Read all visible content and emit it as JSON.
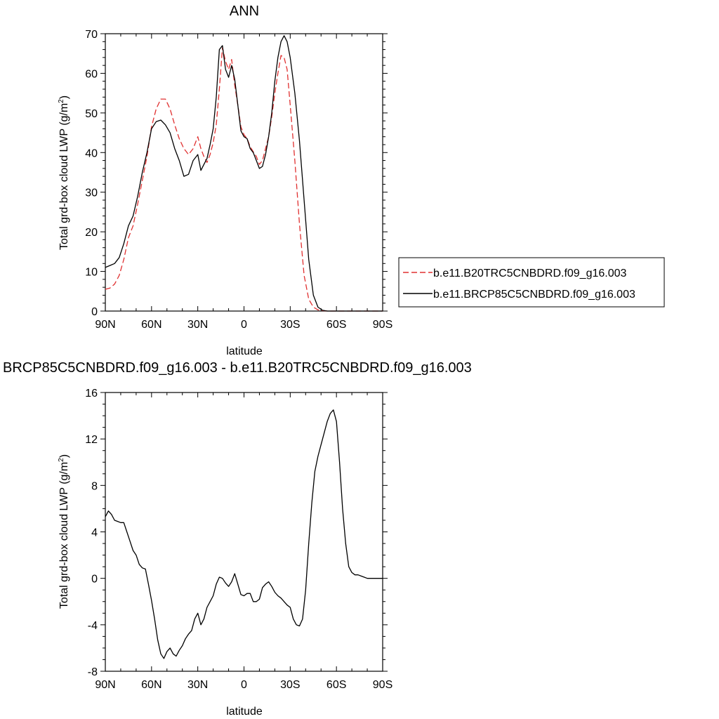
{
  "chart_data": [
    {
      "type": "line",
      "title": "ANN",
      "xlabel": "latitude",
      "ylabel_main": "Total grd-box cloud LWP (g/m",
      "ylabel_sup": "2",
      "ylabel_close": ")",
      "xlim": [
        90,
        -90
      ],
      "ylim": [
        0,
        70
      ],
      "xticks": [
        90,
        60,
        30,
        0,
        -30,
        -60,
        -90
      ],
      "xticklabels": [
        "90N",
        "60N",
        "30N",
        "0",
        "30S",
        "60S",
        "90S"
      ],
      "yticks": [
        0,
        10,
        20,
        30,
        40,
        50,
        60,
        70
      ],
      "yticklabels": [
        "0",
        "10",
        "20",
        "30",
        "40",
        "50",
        "60",
        "70"
      ],
      "legend_position": "right",
      "series": [
        {
          "name": "b.e11.B20TRC5CNBDRD.f09_g16.003",
          "color": "#e03030",
          "style": "dashed",
          "x": [
            90,
            87,
            84,
            81,
            78,
            75,
            72,
            69,
            66,
            63,
            60,
            57,
            54,
            51,
            48,
            45,
            42,
            39,
            36,
            33,
            30,
            28,
            26,
            24,
            22,
            20,
            18,
            16,
            14,
            12,
            10,
            8,
            6,
            4,
            2,
            0,
            -2,
            -4,
            -6,
            -8,
            -10,
            -12,
            -14,
            -16,
            -18,
            -20,
            -22,
            -24,
            -26,
            -28,
            -30,
            -33,
            -36,
            -39,
            -42,
            -45,
            -48,
            -51,
            -54,
            -57,
            -60,
            -63,
            -66,
            -69,
            -72,
            -75,
            -78,
            -81,
            -84,
            -87,
            -90
          ],
          "y": [
            5.5,
            5.8,
            6.8,
            9,
            13,
            18.5,
            21.5,
            27,
            33,
            39,
            46.5,
            51,
            53.5,
            53.5,
            51,
            47,
            43.5,
            41,
            39.5,
            41,
            44,
            41,
            39,
            37.5,
            39.5,
            42.5,
            47,
            56,
            66.5,
            63,
            61,
            63.5,
            57,
            52,
            46.5,
            44.5,
            43.5,
            41.5,
            40.2,
            39,
            37,
            38,
            41,
            44,
            49,
            55,
            60,
            64.5,
            64,
            61,
            52,
            38,
            22,
            9,
            3,
            1,
            0.3,
            0.1,
            0.02,
            0,
            0,
            0,
            0,
            0,
            0,
            0,
            0,
            0,
            0,
            0,
            0
          ]
        },
        {
          "name": "b.e11.BRCP85C5CNBDRD.f09_g16.003",
          "color": "#000000",
          "style": "solid",
          "x": [
            90,
            87,
            84,
            81,
            78,
            75,
            72,
            69,
            66,
            63,
            60,
            57,
            54,
            51,
            48,
            45,
            42,
            39,
            36,
            33,
            30,
            28,
            26,
            24,
            22,
            20,
            18,
            16,
            14,
            12,
            10,
            8,
            6,
            4,
            2,
            0,
            -2,
            -4,
            -6,
            -8,
            -10,
            -12,
            -14,
            -16,
            -18,
            -20,
            -22,
            -24,
            -26,
            -28,
            -30,
            -33,
            -36,
            -39,
            -42,
            -45,
            -48,
            -51,
            -54,
            -57,
            -60,
            -63,
            -66,
            -69,
            -72,
            -75,
            -78,
            -81,
            -84,
            -87,
            -90
          ],
          "y": [
            11,
            11.5,
            12,
            13.5,
            17,
            21.5,
            24,
            29,
            35,
            40,
            46,
            47.8,
            48.2,
            47,
            45,
            41,
            38,
            34,
            34.5,
            38,
            39.5,
            35.5,
            37,
            38.5,
            42,
            46,
            54,
            66,
            67,
            61,
            59,
            62,
            58.5,
            52,
            45.5,
            44,
            43.5,
            41,
            40,
            38,
            36,
            36.5,
            39.5,
            44,
            50,
            58,
            64,
            68,
            69.5,
            68,
            64,
            55,
            43,
            28,
            13,
            4,
            1,
            0.2,
            0,
            0,
            0,
            0,
            0,
            0,
            0,
            0,
            0,
            0,
            0,
            0,
            0
          ]
        }
      ]
    },
    {
      "type": "line",
      "title": "BRCP85C5CNBDRD.f09_g16.003 - b.e11.B20TRC5CNBDRD.f09_g16.003",
      "xlabel": "latitude",
      "ylabel_main": "Total grd-box cloud LWP (g/m",
      "ylabel_sup": "2",
      "ylabel_close": ")",
      "xlim": [
        90,
        -90
      ],
      "ylim": [
        -8,
        16
      ],
      "xticks": [
        90,
        60,
        30,
        0,
        -30,
        -60,
        -90
      ],
      "xticklabels": [
        "90N",
        "60N",
        "30N",
        "0",
        "30S",
        "60S",
        "90S"
      ],
      "yticks": [
        -8,
        -4,
        0,
        4,
        8,
        12,
        16
      ],
      "yticklabels": [
        "-8",
        "-4",
        "0",
        "4",
        "8",
        "12",
        "16"
      ],
      "series": [
        {
          "color": "#000000",
          "style": "solid",
          "x": [
            90,
            88,
            86,
            84,
            82,
            80,
            78,
            76,
            74,
            72,
            70,
            68,
            66,
            64,
            62,
            60,
            58,
            56,
            54,
            52,
            50,
            48,
            46,
            44,
            42,
            40,
            38,
            36,
            34,
            32,
            30,
            28,
            26,
            24,
            22,
            20,
            18,
            16,
            14,
            12,
            10,
            8,
            6,
            4,
            2,
            0,
            -2,
            -4,
            -6,
            -8,
            -10,
            -12,
            -14,
            -16,
            -18,
            -20,
            -22,
            -24,
            -26,
            -28,
            -30,
            -32,
            -34,
            -36,
            -38,
            -40,
            -42,
            -44,
            -46,
            -48,
            -50,
            -52,
            -54,
            -56,
            -58,
            -60,
            -62,
            -64,
            -66,
            -68,
            -70,
            -72,
            -74,
            -76,
            -78,
            -80,
            -82,
            -84,
            -86,
            -88,
            -90
          ],
          "y": [
            5.3,
            5.8,
            5.5,
            5,
            4.9,
            4.8,
            4.8,
            4,
            3.2,
            2.4,
            2,
            1.2,
            0.9,
            0.8,
            -0.5,
            -1.9,
            -3.5,
            -5.3,
            -6.5,
            -6.9,
            -6.3,
            -6,
            -6.5,
            -6.7,
            -6.2,
            -5.8,
            -5.2,
            -4.8,
            -4.5,
            -3.5,
            -3,
            -4,
            -3.5,
            -2.5,
            -2,
            -1.5,
            -0.5,
            0.1,
            0,
            -0.4,
            -0.7,
            -0.3,
            0.4,
            -0.5,
            -1.4,
            -1.5,
            -1.3,
            -1.3,
            -2,
            -2,
            -1.8,
            -0.8,
            -0.5,
            -0.3,
            -0.7,
            -1.2,
            -1.5,
            -1.7,
            -2,
            -2.3,
            -2.5,
            -3.5,
            -4,
            -4.1,
            -3.5,
            -1,
            3,
            6.5,
            9.2,
            10.5,
            11.5,
            12.5,
            13.5,
            14.2,
            14.5,
            13.5,
            10,
            6,
            3,
            1,
            0.5,
            0.3,
            0.3,
            0.2,
            0.1,
            0,
            0,
            0,
            0,
            0,
            0
          ]
        }
      ]
    }
  ]
}
